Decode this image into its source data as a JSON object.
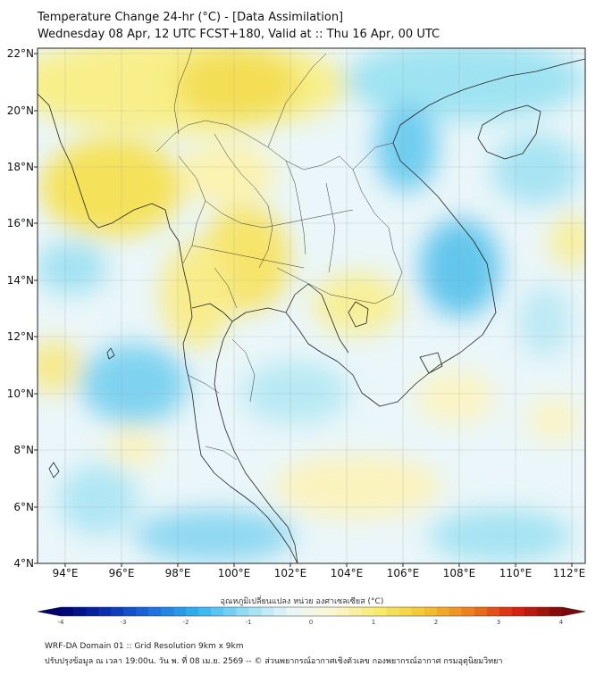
{
  "title_line1": "Temperature Change 24-hr (°C) - [Data Assimilation]",
  "title_line2": "Wednesday 08 Apr, 12 UTC FCST+180, Valid at :: Thu 16 Apr, 00 UTC",
  "axes": {
    "lon_ticks": [
      "94°E",
      "96°E",
      "98°E",
      "100°E",
      "102°E",
      "104°E",
      "106°E",
      "108°E",
      "110°E",
      "112°E"
    ],
    "lat_ticks": [
      "22°N",
      "20°N",
      "18°N",
      "16°N",
      "14°N",
      "12°N",
      "10°N",
      "8°N",
      "6°N",
      "4°N"
    ]
  },
  "colorbar": {
    "label": "อุณหภูมิเปลี่ยนแปลง หน่วย องศาเซลเซียส (°C)",
    "ticks": [
      "-4",
      "-3",
      "-2",
      "-1",
      "0",
      "1",
      "2",
      "3",
      "4"
    ],
    "colors": [
      "#00006e",
      "#0a2fb0",
      "#1e6fe0",
      "#2fb3ef",
      "#8fdcf3",
      "#e8f6f9",
      "#fbf6cf",
      "#f7ea68",
      "#f3c431",
      "#ee7d1e",
      "#d42312",
      "#7a0a0a"
    ]
  },
  "footer_line1": "WRF-DA Domain 01 :: Grid Resolution 9km x 9km",
  "footer_line2": "ปรับปรุงข้อมูล ณ เวลา 19:00น. วัน พ. ที่ 08 เม.ย. 2569 -- © ส่วนพยากรณ์อากาศเชิงตัวเลข กองพยากรณ์อากาศ กรมอุตุนิยมวิทยา"
}
